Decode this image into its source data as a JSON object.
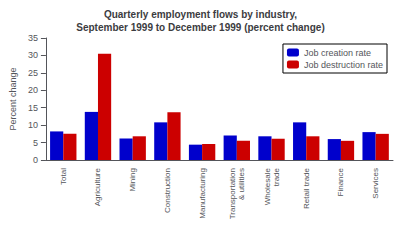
{
  "chart_data": {
    "type": "bar",
    "title": "Quarterly employment flows by industry,\nSeptember 1999 to December 1999 (percent change)",
    "y_label": "Percent change",
    "categories": [
      "Total",
      "Agriculture",
      "Mining",
      "Construction",
      "Manufacturing",
      "Transportation\n& utilities",
      "Wholesale\ntrade",
      "Retail trade",
      "Finance",
      "Services"
    ],
    "series": [
      {
        "name": "Job creation rate",
        "color": "#0000CC",
        "values": [
          8.2,
          13.8,
          6.2,
          10.8,
          4.4,
          7.0,
          6.8,
          10.8,
          6.0,
          8.0
        ]
      },
      {
        "name": "Job destruction rate",
        "color": "#CC0000",
        "values": [
          7.5,
          30.5,
          6.8,
          13.7,
          4.6,
          5.5,
          6.1,
          6.8,
          5.5,
          7.5
        ]
      }
    ],
    "ylim": [
      0,
      35
    ],
    "yticks": [
      0,
      5,
      10,
      15,
      20,
      25,
      30,
      35
    ],
    "grid": false,
    "legend": "upper right"
  }
}
